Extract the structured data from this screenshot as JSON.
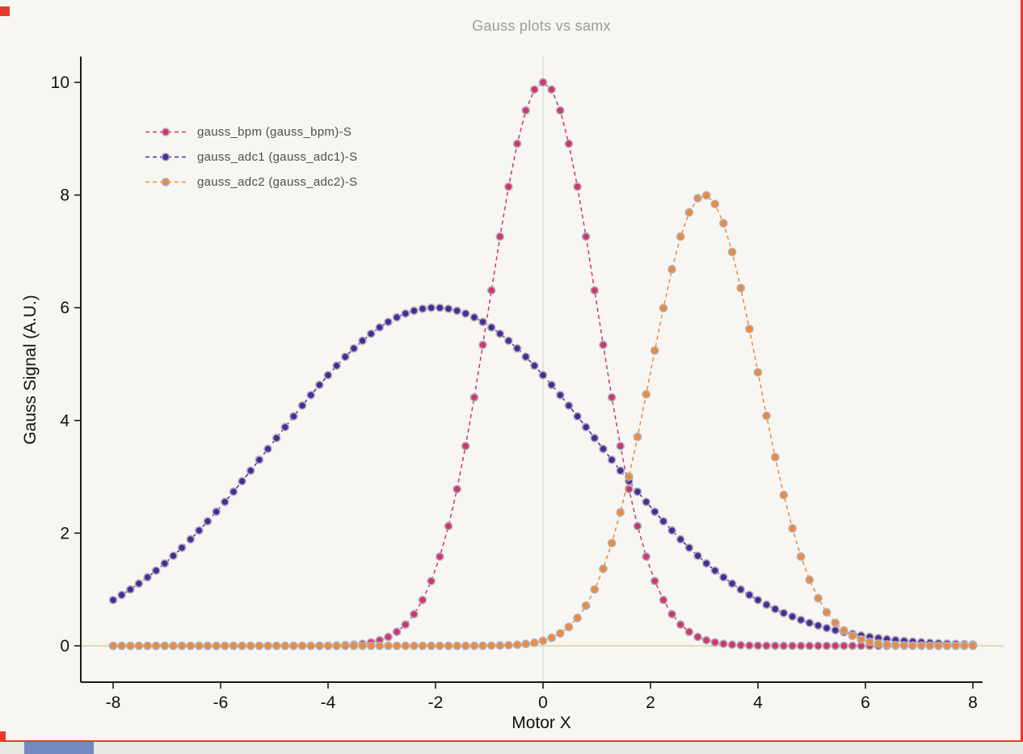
{
  "window": {
    "background": "#f7f6f2"
  },
  "annotations": {
    "border_color": "#e63a2e",
    "taskbar_accent_color": "#7388c1"
  },
  "chart_data": {
    "type": "line",
    "title": "Gauss plots vs samx",
    "xlabel": "Motor X",
    "ylabel": "Gauss Signal (A.U.)",
    "x_range": [
      -8,
      8
    ],
    "n_points": 101,
    "xlim": [
      -8.6,
      8.2
    ],
    "ylim": [
      -0.65,
      10.45
    ],
    "xticks": [
      -8,
      -6,
      -4,
      -2,
      0,
      2,
      4,
      6,
      8
    ],
    "yticks": [
      0,
      2,
      4,
      6,
      8,
      10
    ],
    "grid": {
      "zero_vline_x": 0,
      "zero_vline_color": "#d9d9d9",
      "zero_hline_y": 0,
      "zero_hline_color": "#d3d6a0"
    },
    "legend_position": "upper-left-inside",
    "marker": {
      "shape": "circle",
      "radius": 4.5,
      "stroke": "#b3aeb5"
    },
    "line_style": "dashed",
    "series": [
      {
        "name": "gauss_bpm (gauss_bpm)-S",
        "color": "#ce3672",
        "model": "gaussian",
        "amplitude": 10,
        "mu": 0,
        "sigma": 1,
        "peak": [
          0,
          10
        ]
      },
      {
        "name": "gauss_adc1 (gauss_adc1)-S",
        "color": "#452d9c",
        "model": "gaussian",
        "amplitude": 6,
        "mu": -2,
        "sigma": 3,
        "peak": [
          -2,
          6
        ]
      },
      {
        "name": "gauss_adc2 (gauss_adc2)-S",
        "color": "#ee8a3b",
        "model": "gaussian",
        "amplitude": 8,
        "mu": 3,
        "sigma": 1,
        "peak": [
          3,
          8
        ]
      }
    ],
    "title_color": "#9b9b9b",
    "axis_color": "#1a1a1a",
    "tick_label_color": "#111111"
  }
}
